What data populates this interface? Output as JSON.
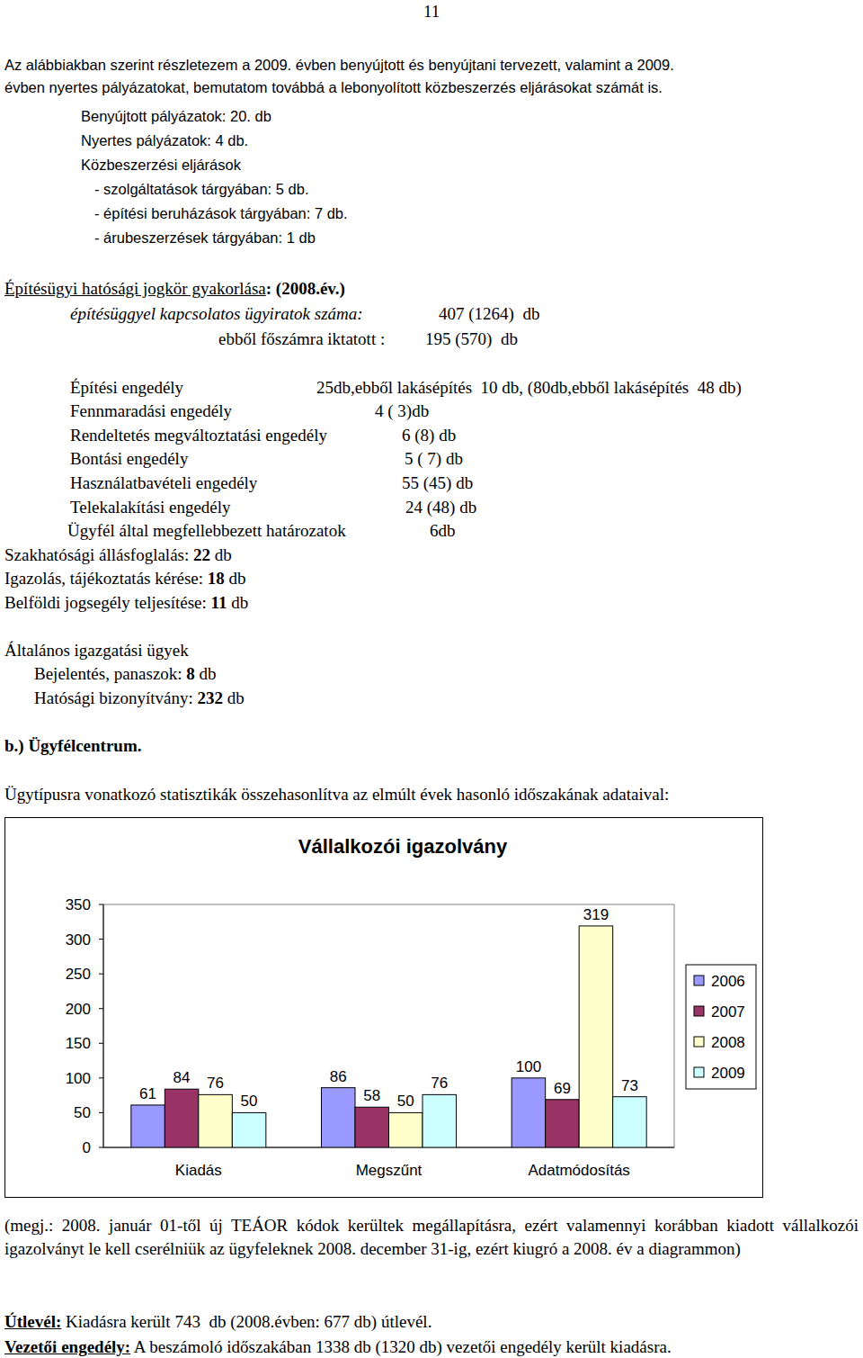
{
  "page_number": "11",
  "intro": {
    "lines": [
      "Az alábbiakban szerint részletezem a 2009. évben benyújtott és benyújtani tervezett, valamint a 2009.",
      "évben nyertes pályázatokat, bemutatom továbbá a lebonyolított közbeszerzés eljárásokat számát is."
    ],
    "items": [
      "Benyújtott pályázatok: 20. db",
      "Nyertes pályázatok: 4 db.",
      "Közbeszerzési eljárások"
    ],
    "sub_items": [
      "- szolgáltatások tárgyában: 5 db.",
      "- építési beruházások tárgyában: 7 db.",
      "- árubeszerzések tárgyában: 1 db"
    ]
  },
  "building": {
    "heading": "Építésügyi hatósági jogkör gyakorlása",
    "heading_suffix": ": (2008.év.)",
    "files_label": "építésüggyel kapcsolatos ügyiratok száma:",
    "files_value": "407 (1264)  db",
    "main_label": "ebből főszámra iktatott :",
    "main_value": "195 (570)  db",
    "permits": [
      [
        "Építési engedély",
        "25db,ebből lakásépítés  10 db, (80db,ebből lakásépítés  48 db)"
      ],
      [
        "Fennmaradási engedély",
        "4 ( 3)db"
      ],
      [
        "Rendeltetés megváltoztatási engedély",
        "6 (8) db"
      ],
      [
        "Bontási engedély",
        "5 ( 7) db"
      ],
      [
        "Használatbavételi engedély",
        "55 (45) db"
      ],
      [
        "Telekalakítási engedély",
        "24 (48) db"
      ],
      [
        "Ügyfél által megfellebbezett határozatok",
        "6db"
      ]
    ],
    "counts": [
      {
        "label": "Szakhatósági állásfoglalás:",
        "value": 22,
        "unit": "db"
      },
      {
        "label": "Igazolás, tájékoztatás kérése:",
        "value": 18,
        "unit": "db"
      },
      {
        "label": "Belföldi jogsegély teljesítése:",
        "value": 11,
        "unit": "db"
      }
    ]
  },
  "general": {
    "heading": "Általános igazgatási ügyek",
    "counts": [
      {
        "label": "Bejelentés, panaszok:",
        "value": 8,
        "unit": "db"
      },
      {
        "label": "Hatósági bizonyítvány:",
        "value": 232,
        "unit": "db"
      }
    ]
  },
  "section_b": {
    "heading": "b.) Ügyfélcentrum.",
    "intro": "Ügytípusra vonatkozó statisztikák összehasonlítva az elmúlt évek hasonló időszakának adataival:"
  },
  "chart_data": {
    "type": "bar",
    "title": "Vállalkozói igazolvány",
    "categories": [
      "Kiadás",
      "Megszűnt",
      "Adatmódosítás"
    ],
    "series": [
      {
        "name": "2006",
        "color": "#9999ff",
        "values": [
          61,
          86,
          100
        ]
      },
      {
        "name": "2007",
        "color": "#993366",
        "values": [
          84,
          58,
          69
        ]
      },
      {
        "name": "2008",
        "color": "#ffffcc",
        "values": [
          76,
          50,
          319
        ]
      },
      {
        "name": "2009",
        "color": "#ccffff",
        "values": [
          50,
          76,
          73
        ]
      }
    ],
    "ylim": [
      0,
      350
    ],
    "yticks": [
      0,
      50,
      100,
      150,
      200,
      250,
      300,
      350
    ],
    "grid": false,
    "legend": "right",
    "data_labels": true
  },
  "note": "(megj.: 2008. január 01-től új TEÁOR kódok kerültek megállapításra, ezért valamennyi korábban kiadott vállalkozói igazolványt le kell cserélniük az ügyfeleknek 2008. december 31-ig, ezért kiugró a 2008. év a diagrammon)",
  "passport": {
    "label": "Útlevél:",
    "text": "Kiadásra került 743  db (2008.évben: 677 db) útlevél."
  },
  "license": {
    "label": "Vezetői engedély:",
    "text": "A beszámoló időszakában 1338 db (1320 db) vezetői engedély került kiadásra."
  }
}
